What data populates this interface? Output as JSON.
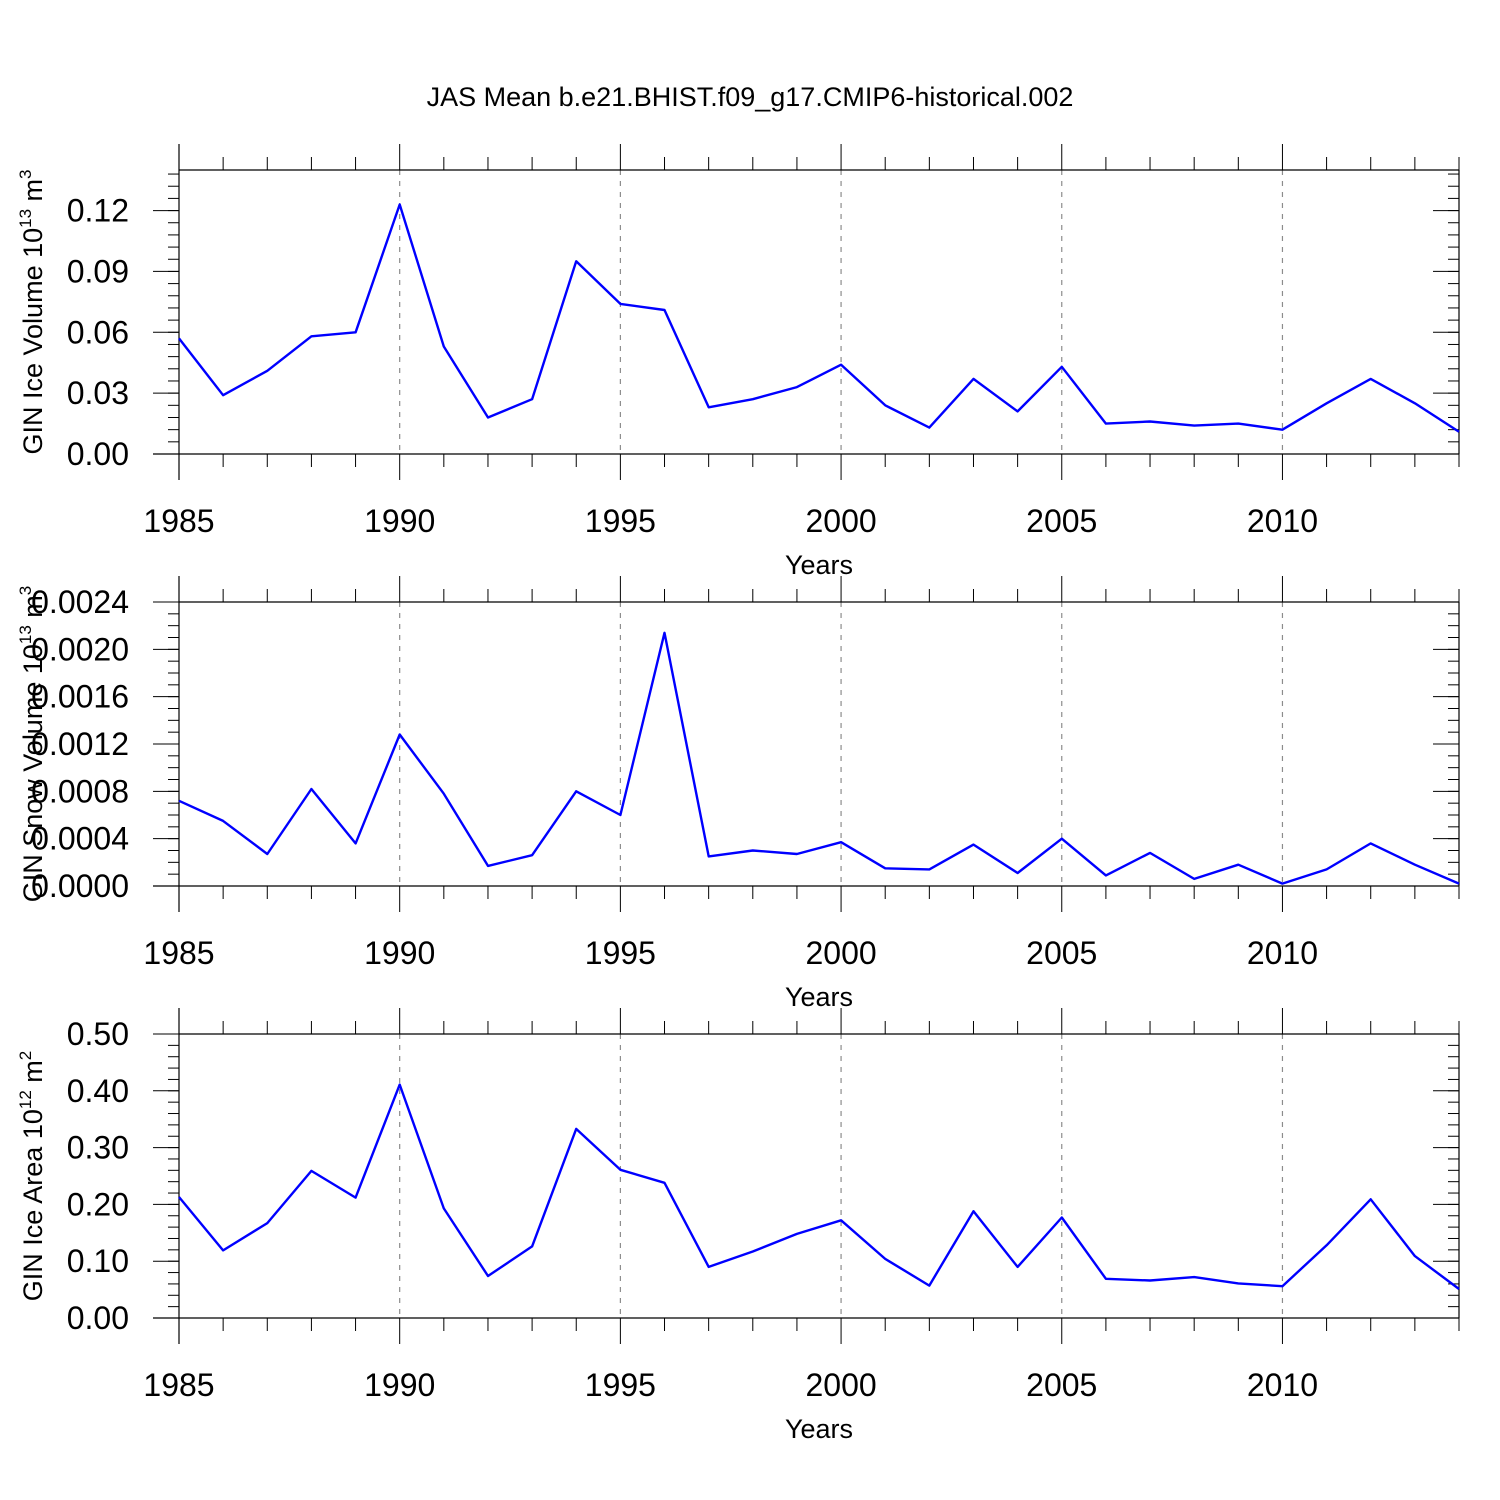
{
  "title": "JAS Mean b.e21.BHIST.f09_g17.CMIP6-historical.002",
  "colors": {
    "series": "#0000ff",
    "axis": "#000000",
    "grid": "#8c8c8c"
  },
  "chart_data": [
    {
      "type": "line",
      "ylabel": "GIN Ice Volume 10",
      "ylabel_sup": "13",
      "ylabel_unit": "m",
      "ylabel_unit_sup": "3",
      "xlabel": "Years",
      "xlim": [
        1985,
        2014
      ],
      "ylim": [
        0,
        0.14
      ],
      "yticks": [
        0.0,
        0.03,
        0.06,
        0.09,
        0.12
      ],
      "ytick_labels": [
        "0.00",
        "0.03",
        "0.06",
        "0.09",
        "0.12"
      ],
      "yminor_step": 0.006,
      "xticks": [
        1985,
        1990,
        1995,
        2000,
        2005,
        2010
      ],
      "xtick_labels": [
        "1985",
        "1990",
        "1995",
        "2000",
        "2005",
        "2010"
      ],
      "grid_x": [
        1990,
        1995,
        2000,
        2005,
        2010
      ],
      "x": [
        1985,
        1986,
        1987,
        1988,
        1989,
        1990,
        1991,
        1992,
        1993,
        1994,
        1995,
        1996,
        1997,
        1998,
        1999,
        2000,
        2001,
        2002,
        2003,
        2004,
        2005,
        2006,
        2007,
        2008,
        2009,
        2010,
        2011,
        2012,
        2013,
        2014
      ],
      "series": [
        {
          "name": "GIN Ice Volume",
          "values": [
            0.057,
            0.029,
            0.041,
            0.058,
            0.06,
            0.123,
            0.053,
            0.018,
            0.027,
            0.095,
            0.074,
            0.071,
            0.023,
            0.027,
            0.033,
            0.044,
            0.024,
            0.013,
            0.037,
            0.021,
            0.043,
            0.015,
            0.016,
            0.014,
            0.015,
            0.012,
            0.025,
            0.037,
            0.025,
            0.011
          ]
        }
      ]
    },
    {
      "type": "line",
      "ylabel": "GIN Snow Volume 10",
      "ylabel_sup": "13",
      "ylabel_unit": "m",
      "ylabel_unit_sup": "3",
      "xlabel": "Years",
      "xlim": [
        1985,
        2014
      ],
      "ylim": [
        0,
        0.0024
      ],
      "yticks": [
        0.0,
        0.0004,
        0.0008,
        0.0012,
        0.0016,
        0.002,
        0.0024
      ],
      "ytick_labels": [
        "0.0000",
        "0.0004",
        "0.0008",
        "0.0012",
        "0.0016",
        "0.0020",
        "0.0024"
      ],
      "yminor_step": 0.0001,
      "xticks": [
        1985,
        1990,
        1995,
        2000,
        2005,
        2010
      ],
      "xtick_labels": [
        "1985",
        "1990",
        "1995",
        "2000",
        "2005",
        "2010"
      ],
      "grid_x": [
        1990,
        1995,
        2000,
        2005,
        2010
      ],
      "x": [
        1985,
        1986,
        1987,
        1988,
        1989,
        1990,
        1991,
        1992,
        1993,
        1994,
        1995,
        1996,
        1997,
        1998,
        1999,
        2000,
        2001,
        2002,
        2003,
        2004,
        2005,
        2006,
        2007,
        2008,
        2009,
        2010,
        2011,
        2012,
        2013,
        2014
      ],
      "series": [
        {
          "name": "GIN Snow Volume",
          "values": [
            0.00072,
            0.00055,
            0.00027,
            0.00082,
            0.00036,
            0.00128,
            0.00078,
            0.00017,
            0.00026,
            0.0008,
            0.0006,
            0.00214,
            0.00025,
            0.0003,
            0.00027,
            0.00037,
            0.00015,
            0.00014,
            0.00035,
            0.00011,
            0.0004,
            9e-05,
            0.00028,
            6e-05,
            0.00018,
            2e-05,
            0.00014,
            0.00036,
            0.00018,
            2e-05
          ]
        }
      ]
    },
    {
      "type": "line",
      "ylabel": "GIN Ice Area 10",
      "ylabel_sup": "12",
      "ylabel_unit": "m",
      "ylabel_unit_sup": "2",
      "xlabel": "Years",
      "xlim": [
        1985,
        2014
      ],
      "ylim": [
        0,
        0.5
      ],
      "yticks": [
        0.0,
        0.1,
        0.2,
        0.3,
        0.4,
        0.5
      ],
      "ytick_labels": [
        "0.00",
        "0.10",
        "0.20",
        "0.30",
        "0.40",
        "0.50"
      ],
      "yminor_step": 0.02,
      "xticks": [
        1985,
        1990,
        1995,
        2000,
        2005,
        2010
      ],
      "xtick_labels": [
        "1985",
        "1990",
        "1995",
        "2000",
        "2005",
        "2010"
      ],
      "grid_x": [
        1990,
        1995,
        2000,
        2005,
        2010
      ],
      "x": [
        1985,
        1986,
        1987,
        1988,
        1989,
        1990,
        1991,
        1992,
        1993,
        1994,
        1995,
        1996,
        1997,
        1998,
        1999,
        2000,
        2001,
        2002,
        2003,
        2004,
        2005,
        2006,
        2007,
        2008,
        2009,
        2010,
        2011,
        2012,
        2013,
        2014
      ],
      "series": [
        {
          "name": "GIN Ice Area",
          "values": [
            0.213,
            0.119,
            0.167,
            0.259,
            0.212,
            0.411,
            0.193,
            0.074,
            0.126,
            0.333,
            0.261,
            0.238,
            0.09,
            0.117,
            0.148,
            0.172,
            0.104,
            0.057,
            0.188,
            0.09,
            0.177,
            0.069,
            0.066,
            0.072,
            0.061,
            0.056,
            0.128,
            0.209,
            0.109,
            0.051
          ]
        }
      ]
    }
  ]
}
